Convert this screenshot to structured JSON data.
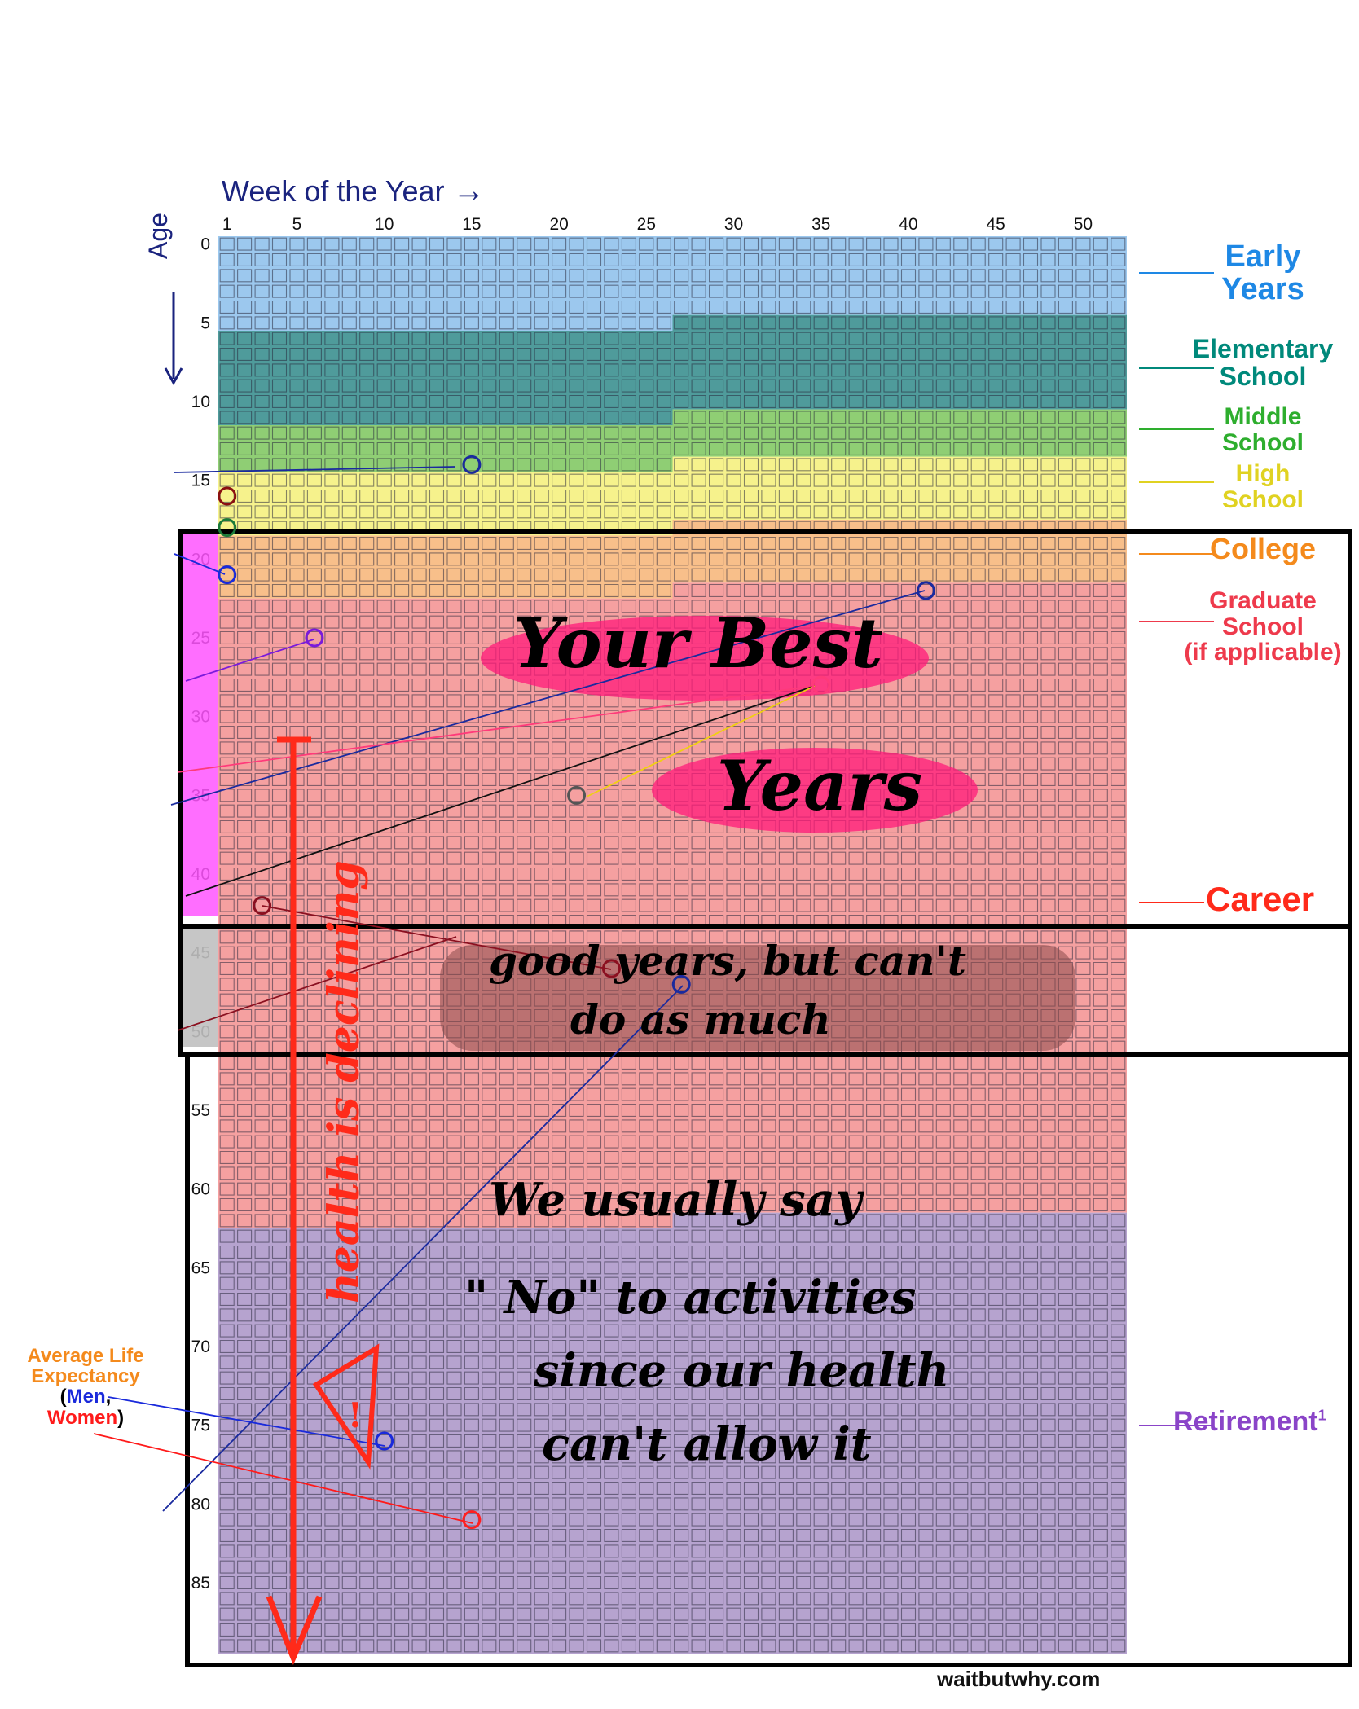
{
  "chart_data": {
    "type": "heatmap",
    "title": "",
    "xlabel": "Week of the Year",
    "ylabel": "Age",
    "x_ticks": [
      1,
      5,
      10,
      15,
      20,
      25,
      30,
      35,
      40,
      45,
      50
    ],
    "y_ticks": [
      0,
      5,
      10,
      15,
      20,
      25,
      30,
      35,
      40,
      45,
      50,
      55,
      60,
      65,
      70,
      75,
      80,
      85
    ],
    "weeks_per_year": 52,
    "years": 90,
    "phases": [
      {
        "name": "Early Years",
        "label_lines": [
          "Early",
          "Years"
        ],
        "start_age": 0,
        "end_age": 5.5,
        "color": "#9cc8ee",
        "label_color": "#1e88e5"
      },
      {
        "name": "Elementary School",
        "label_lines": [
          "Elementary",
          "School"
        ],
        "start_age": 5.5,
        "end_age": 11.5,
        "color": "#4f9b9b",
        "label_color": "#00897b"
      },
      {
        "name": "Middle School",
        "label_lines": [
          "Middle",
          "School"
        ],
        "start_age": 11.5,
        "end_age": 14.5,
        "color": "#8fce74",
        "label_color": "#2eae2e"
      },
      {
        "name": "High School",
        "label_lines": [
          "High",
          "School"
        ],
        "start_age": 14.5,
        "end_age": 18.5,
        "color": "#f6f28c",
        "label_color": "#e0d221"
      },
      {
        "name": "College",
        "label_lines": [
          "College"
        ],
        "start_age": 18.5,
        "end_age": 22.5,
        "color": "#f8bf8a",
        "label_color": "#f48a1c"
      },
      {
        "name": "Graduate School",
        "label_lines": [
          "Graduate",
          "School",
          "(if applicable)"
        ],
        "start_age": 22.5,
        "end_age": 62.5,
        "color": "#f5a0a0",
        "label_color": "#ee3a4c"
      },
      {
        "name": "Retirement",
        "label_lines": [
          "Retirement"
        ],
        "start_age": 62.5,
        "end_age": 90,
        "color": "#b6a3cf",
        "label_color": "#8a44c8"
      }
    ],
    "career_label": "Career",
    "career_label_color": "#ff2a1a",
    "retirement_superscript": "1",
    "markers": [
      {
        "week": 15,
        "age": 14,
        "color": "#1a2a9e"
      },
      {
        "week": 1,
        "age": 16,
        "color": "#8b1010"
      },
      {
        "week": 1,
        "age": 18,
        "color": "#1a7a3a"
      },
      {
        "week": 1,
        "age": 21,
        "color": "#1a2adb"
      },
      {
        "week": 6,
        "age": 25,
        "color": "#7a1adb"
      },
      {
        "week": 41,
        "age": 22,
        "color": "#1a2a9e"
      },
      {
        "week": 35,
        "age": 28,
        "color": "#ff3a7a"
      },
      {
        "week": 21,
        "age": 35,
        "color": "#555555"
      },
      {
        "week": 3,
        "age": 42,
        "color": "#8b1020"
      },
      {
        "week": 23,
        "age": 46,
        "color": "#8b1020"
      },
      {
        "week": 27,
        "age": 47,
        "color": "#1a2a9e"
      },
      {
        "week": 10,
        "age": 76,
        "color": "#1a2adb"
      },
      {
        "week": 15,
        "age": 81,
        "color": "#ff2020"
      }
    ],
    "life_expectancy": {
      "title_lines": [
        "Average Life",
        "Expectancy"
      ],
      "men_label": "Men",
      "women_label": "Women",
      "open_paren": "(",
      "comma": ",",
      "close_paren": ")",
      "men_age": 76,
      "women_age": 81,
      "title_color": "#f48a1c",
      "men_color": "#1a2adb",
      "women_color": "#ff1a1a"
    },
    "annotations": {
      "best_years": [
        "Your Best",
        "Years"
      ],
      "good_years": [
        "good years, but can't",
        "do as much"
      ],
      "no_activities": [
        "We usually say",
        "\" No\" to activities",
        "since our health",
        "can't allow it"
      ],
      "health_declining": "health is declining",
      "warning_glyph": "!"
    },
    "source": "waitbutwhy.com"
  }
}
